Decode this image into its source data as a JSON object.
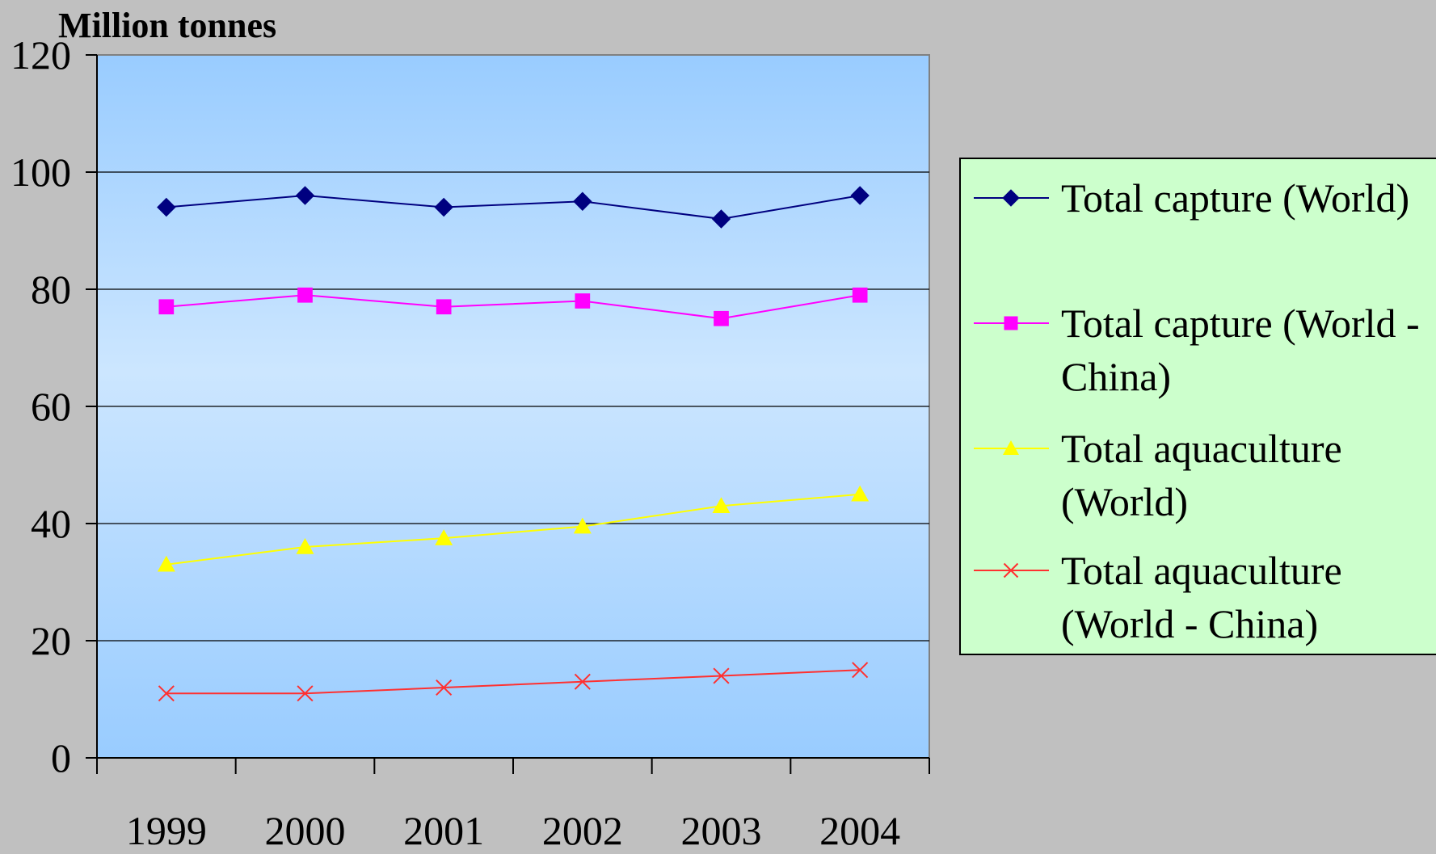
{
  "chart_data": {
    "type": "line",
    "ylabel": "Million tonnes",
    "xlabel": "",
    "x": [
      "1999",
      "2000",
      "2001",
      "2002",
      "2003",
      "2004"
    ],
    "ylim": [
      0,
      120
    ],
    "yticks": [
      "0",
      "20",
      "40",
      "60",
      "80",
      "100",
      "120"
    ],
    "grid": true,
    "legend_position": "right",
    "background_color": "#99ccff",
    "legend_background": "#ccffcc",
    "series": [
      {
        "name": "Total capture (World)",
        "legend_lines": [
          "Total capture (World)"
        ],
        "values": [
          94,
          96,
          94,
          95,
          92,
          96
        ],
        "color": "#000080",
        "marker": "diamond"
      },
      {
        "name": "Total capture (World - China)",
        "legend_lines": [
          "Total capture (World -",
          "China)"
        ],
        "values": [
          77,
          79,
          77,
          78,
          75,
          79
        ],
        "color": "#ff00ff",
        "marker": "square"
      },
      {
        "name": "Total aquaculture (World)",
        "legend_lines": [
          "Total aquaculture",
          "(World)"
        ],
        "values": [
          33,
          36,
          37.5,
          39.5,
          43,
          45
        ],
        "color": "#ffff00",
        "marker": "triangle"
      },
      {
        "name": "Total aquaculture (World - China)",
        "legend_lines": [
          "Total aquaculture",
          "(World - China)"
        ],
        "values": [
          11,
          11,
          12,
          13,
          14,
          15
        ],
        "color": "#ff3030",
        "marker": "x"
      }
    ]
  }
}
